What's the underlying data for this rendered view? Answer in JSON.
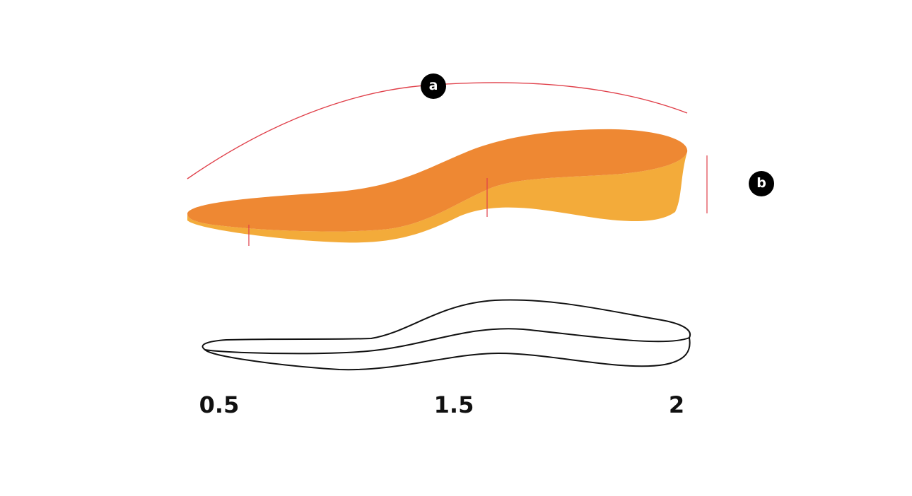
{
  "markers": [
    {
      "label": "a"
    },
    {
      "label": "b"
    }
  ],
  "thickness_labels": [
    "0.5",
    "1.5",
    "2"
  ]
}
